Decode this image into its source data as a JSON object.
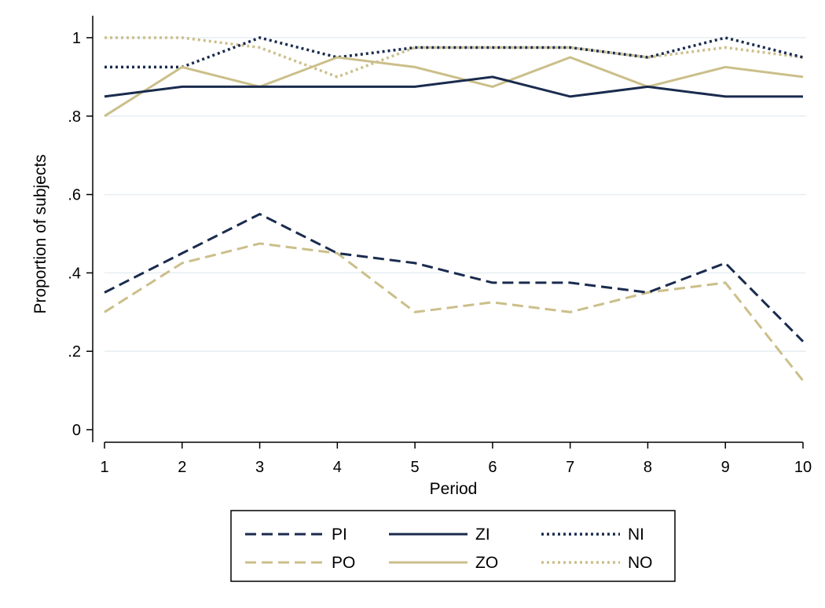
{
  "chart_data": {
    "type": "line",
    "title": "",
    "xlabel": "Period",
    "ylabel": "Proportion of subjects",
    "x": [
      1,
      2,
      3,
      4,
      5,
      6,
      7,
      8,
      9,
      10
    ],
    "xlim": [
      1,
      10
    ],
    "ylim": [
      0,
      1
    ],
    "x_ticks": [
      "1",
      "2",
      "3",
      "4",
      "5",
      "6",
      "7",
      "8",
      "9",
      "10"
    ],
    "y_ticks": [
      {
        "value": 0,
        "label": "0"
      },
      {
        "value": 0.2,
        "label": ".2"
      },
      {
        "value": 0.4,
        "label": ".4"
      },
      {
        "value": 0.6,
        "label": ".6"
      },
      {
        "value": 0.8,
        "label": ".8"
      },
      {
        "value": 1,
        "label": "1"
      }
    ],
    "grid": "horizontal",
    "legend_position": "bottom",
    "series": [
      {
        "name": "PI",
        "color": "#1a2b4e",
        "dash": "dash",
        "values": [
          0.35,
          0.45,
          0.55,
          0.45,
          0.425,
          0.375,
          0.375,
          0.35,
          0.425,
          0.225
        ]
      },
      {
        "name": "ZI",
        "color": "#1a2b4e",
        "dash": "solid",
        "values": [
          0.85,
          0.875,
          0.875,
          0.875,
          0.875,
          0.9,
          0.85,
          0.875,
          0.85,
          0.85
        ]
      },
      {
        "name": "NI",
        "color": "#1a2b4e",
        "dash": "dot",
        "values": [
          0.925,
          0.925,
          1.0,
          0.95,
          0.975,
          0.975,
          0.975,
          0.95,
          1.0,
          0.95
        ]
      },
      {
        "name": "PO",
        "color": "#cbbf8a",
        "dash": "dash",
        "values": [
          0.3,
          0.425,
          0.475,
          0.45,
          0.3,
          0.325,
          0.3,
          0.35,
          0.375,
          0.125
        ]
      },
      {
        "name": "ZO",
        "color": "#cbbf8a",
        "dash": "solid",
        "values": [
          0.8,
          0.925,
          0.875,
          0.95,
          0.925,
          0.875,
          0.95,
          0.875,
          0.925,
          0.9
        ]
      },
      {
        "name": "NO",
        "color": "#cbbf8a",
        "dash": "dot",
        "values": [
          1.0,
          1.0,
          0.975,
          0.9,
          0.975,
          0.975,
          0.975,
          0.95,
          0.975,
          0.95
        ]
      }
    ]
  }
}
